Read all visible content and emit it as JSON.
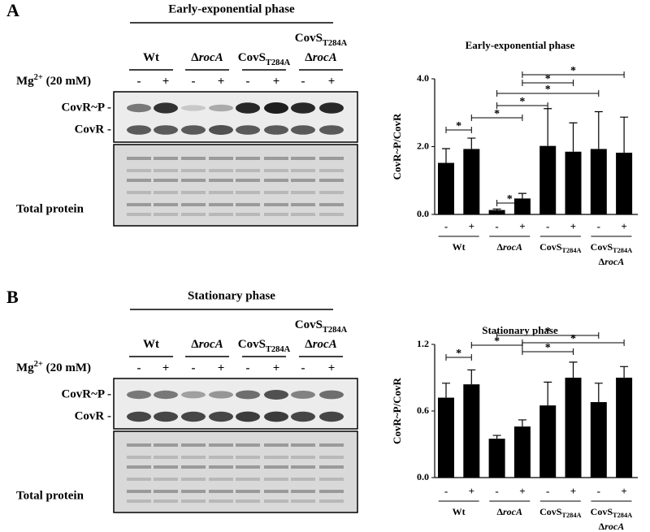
{
  "blots": [
    {
      "label": "A",
      "title": "Early-exponential phase",
      "treatment": [
        {
          "text": "Mg"
        },
        {
          "text": "2+",
          "style": "sup"
        },
        {
          "text": " (20 mM)"
        }
      ],
      "signs": [
        "-",
        "+",
        "-",
        "+",
        "-",
        "+",
        "-",
        "+"
      ],
      "groups": [
        [
          [
            {
              "text": "Wt"
            }
          ]
        ],
        [
          [
            {
              "text": "Δ"
            },
            {
              "text": "rocA",
              "style": "i"
            }
          ]
        ],
        [
          [
            {
              "text": "CovS"
            },
            {
              "text": "T284A",
              "style": "sub"
            }
          ]
        ],
        [
          [
            {
              "text": "CovS"
            },
            {
              "text": "T284A",
              "style": "sub"
            }
          ],
          [
            {
              "text": "Δ"
            },
            {
              "text": "rocA",
              "style": "i"
            }
          ]
        ]
      ],
      "bands": [
        "CovR~P -",
        "CovR -"
      ],
      "loading": "Total protein"
    },
    {
      "label": "B",
      "title": "Stationary phase",
      "treatment": [
        {
          "text": "Mg"
        },
        {
          "text": "2+",
          "style": "sup"
        },
        {
          "text": " (20 mM)"
        }
      ],
      "signs": [
        "-",
        "+",
        "-",
        "+",
        "-",
        "+",
        "-",
        "+"
      ],
      "groups": [
        [
          [
            {
              "text": "Wt"
            }
          ]
        ],
        [
          [
            {
              "text": "Δ"
            },
            {
              "text": "rocA",
              "style": "i"
            }
          ]
        ],
        [
          [
            {
              "text": "CovS"
            },
            {
              "text": "T284A",
              "style": "sub"
            }
          ]
        ],
        [
          [
            {
              "text": "CovS"
            },
            {
              "text": "T284A",
              "style": "sub"
            }
          ],
          [
            {
              "text": "Δ"
            },
            {
              "text": "rocA",
              "style": "i"
            }
          ]
        ]
      ],
      "bands": [
        "CovR~P -",
        "CovR -"
      ],
      "loading": "Total protein"
    }
  ],
  "chart_data": [
    {
      "type": "bar",
      "title": "Early-exponential phase",
      "ylabel": "CovR~P/CovR",
      "categories": [
        "-",
        "+",
        "-",
        "+",
        "-",
        "+",
        "-",
        "+"
      ],
      "groups": [
        [
          [
            {
              "text": "Wt"
            }
          ]
        ],
        [
          [
            {
              "text": "Δ"
            },
            {
              "text": "rocA",
              "style": "i"
            }
          ]
        ],
        [
          [
            {
              "text": "CovS"
            },
            {
              "text": "T284A",
              "style": "sub"
            }
          ]
        ],
        [
          [
            {
              "text": "CovS"
            },
            {
              "text": "T284A",
              "style": "sub"
            }
          ],
          [
            {
              "text": "Δ"
            },
            {
              "text": "rocA",
              "style": "i"
            }
          ]
        ]
      ],
      "values": [
        1.52,
        1.93,
        0.13,
        0.47,
        2.02,
        1.85,
        1.93,
        1.82
      ],
      "errors": [
        0.42,
        0.32,
        0.03,
        0.15,
        1.1,
        0.85,
        1.1,
        1.05
      ],
      "color": "#000000",
      "ylim": [
        0,
        4
      ],
      "yticks": [
        {
          "value": 0,
          "label": "0.0"
        },
        {
          "value": 2,
          "label": "2.0"
        },
        {
          "value": 4,
          "label": "4.0"
        }
      ],
      "significance": [
        {
          "bars": [
            0,
            1
          ],
          "label": "*"
        },
        {
          "bars": [
            1,
            3
          ],
          "label": "*"
        },
        {
          "bars": [
            2,
            4
          ],
          "label": "*"
        },
        {
          "bars": [
            2,
            6
          ],
          "label": "*"
        },
        {
          "bars": [
            3,
            5
          ],
          "label": "*"
        },
        {
          "bars": [
            3,
            7
          ],
          "label": "*"
        },
        {
          "bars": [
            2,
            3
          ],
          "label": "*"
        }
      ]
    },
    {
      "type": "bar",
      "title": "Stationary phase",
      "ylabel": "CovR~P/CovR",
      "categories": [
        "-",
        "+",
        "-",
        "+",
        "-",
        "+",
        "-",
        "+"
      ],
      "groups": [
        [
          [
            {
              "text": "Wt"
            }
          ]
        ],
        [
          [
            {
              "text": "Δ"
            },
            {
              "text": "rocA",
              "style": "i"
            }
          ]
        ],
        [
          [
            {
              "text": "CovS"
            },
            {
              "text": "T284A",
              "style": "sub"
            }
          ]
        ],
        [
          [
            {
              "text": "CovS"
            },
            {
              "text": "T284A",
              "style": "sub"
            }
          ],
          [
            {
              "text": "Δ"
            },
            {
              "text": "rocA",
              "style": "i"
            }
          ]
        ]
      ],
      "values": [
        0.72,
        0.84,
        0.35,
        0.46,
        0.65,
        0.9,
        0.68,
        0.9
      ],
      "errors": [
        0.13,
        0.13,
        0.03,
        0.06,
        0.21,
        0.14,
        0.17,
        0.1
      ],
      "color": "#000000",
      "ylim": [
        0,
        1.2
      ],
      "yticks": [
        {
          "value": 0,
          "label": "0.0"
        },
        {
          "value": 0.6,
          "label": "0.6"
        },
        {
          "value": 1.2,
          "label": "1.2"
        }
      ],
      "significance": [
        {
          "bars": [
            0,
            1
          ],
          "label": "*"
        },
        {
          "bars": [
            1,
            3
          ],
          "label": "*"
        },
        {
          "bars": [
            3,
            5
          ],
          "label": "*"
        },
        {
          "bars": [
            2,
            6
          ],
          "label": "*"
        },
        {
          "bars": [
            3,
            7
          ],
          "label": "*"
        }
      ]
    }
  ]
}
